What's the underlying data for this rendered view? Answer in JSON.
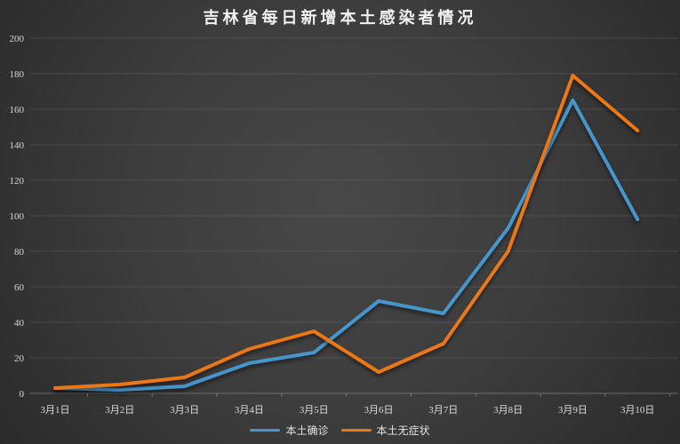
{
  "chart_data": {
    "type": "line",
    "title": "吉林省每日新增本土感染者情况",
    "categories": [
      "3月1日",
      "3月2日",
      "3月3日",
      "3月4日",
      "3月5日",
      "3月6日",
      "3月7日",
      "3月8日",
      "3月9日",
      "3月10日"
    ],
    "series": [
      {
        "name": "本土确诊",
        "color": "#4696CD",
        "values": [
          3,
          2,
          4,
          17,
          23,
          52,
          45,
          93,
          165,
          98
        ]
      },
      {
        "name": "本土无症状",
        "color": "#EB7814",
        "values": [
          3,
          5,
          9,
          25,
          35,
          12,
          28,
          80,
          179,
          148
        ]
      }
    ],
    "xlabel": "",
    "ylabel": "",
    "ylim": [
      0,
      200
    ],
    "ytick_step": 20,
    "yticks": [
      "0",
      "20",
      "40",
      "60",
      "80",
      "100",
      "120",
      "140",
      "160",
      "180",
      "200"
    ],
    "grid": true,
    "legend_position": "bottom"
  }
}
